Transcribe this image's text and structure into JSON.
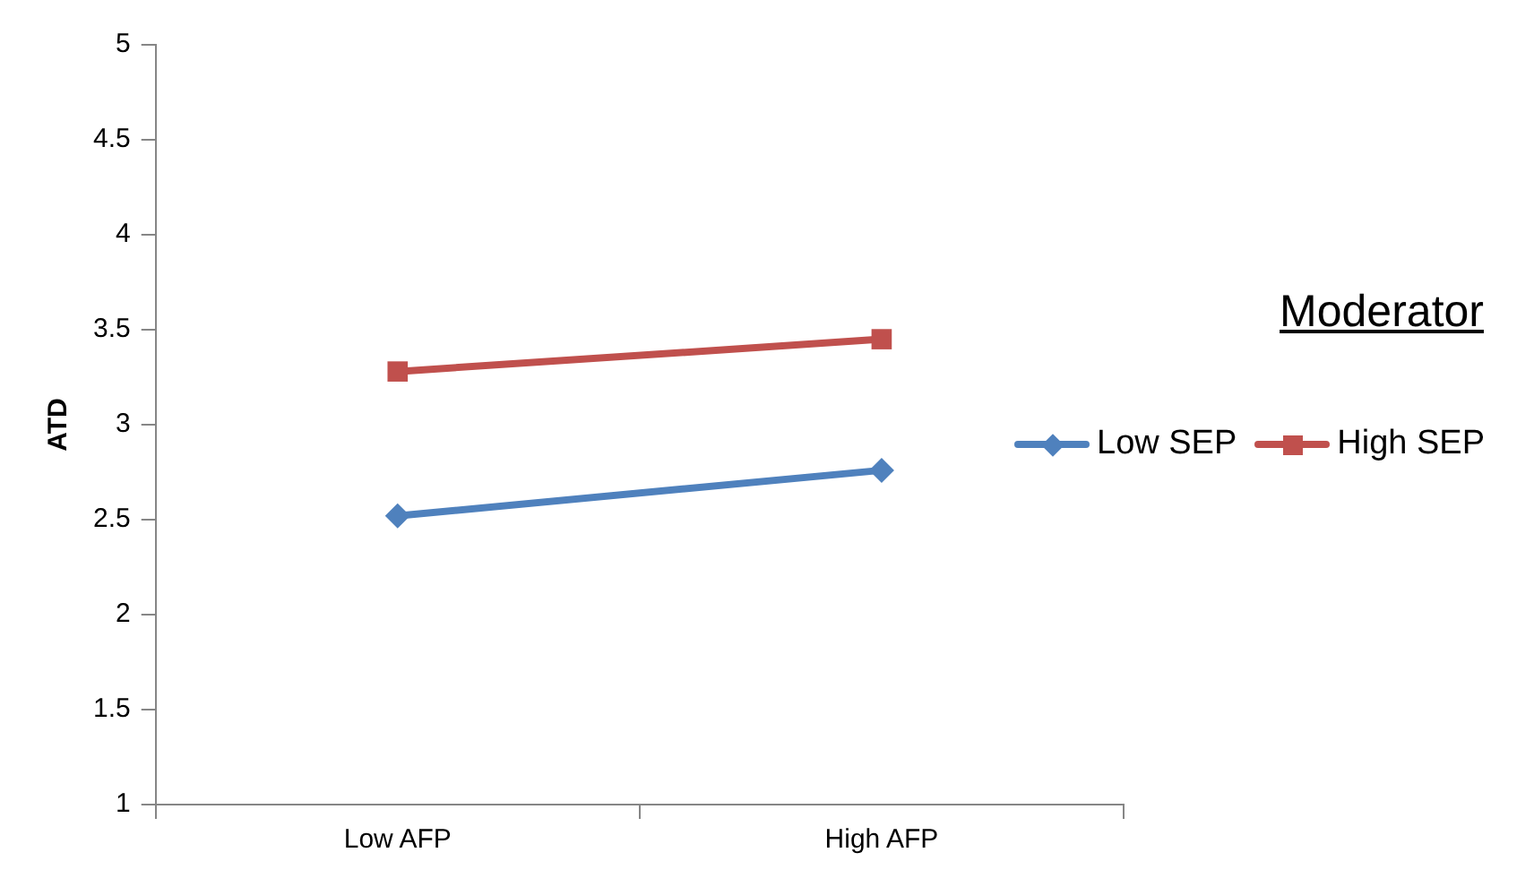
{
  "chart_data": {
    "type": "line",
    "ylabel": "ATD",
    "legend_title": "Moderator",
    "categories": [
      "Low AFP",
      "High AFP"
    ],
    "series": [
      {
        "name": "Low SEP",
        "color": "#4f81bd",
        "marker": "diamond",
        "values": [
          2.52,
          2.76
        ]
      },
      {
        "name": "High SEP",
        "color": "#c0504d",
        "marker": "square",
        "values": [
          3.28,
          3.45
        ]
      }
    ],
    "ylim": [
      1,
      5
    ],
    "yticks": [
      1,
      1.5,
      2,
      2.5,
      3,
      3.5,
      4,
      4.5,
      5
    ],
    "grid": false,
    "legend": "right",
    "line_style": "solid"
  }
}
